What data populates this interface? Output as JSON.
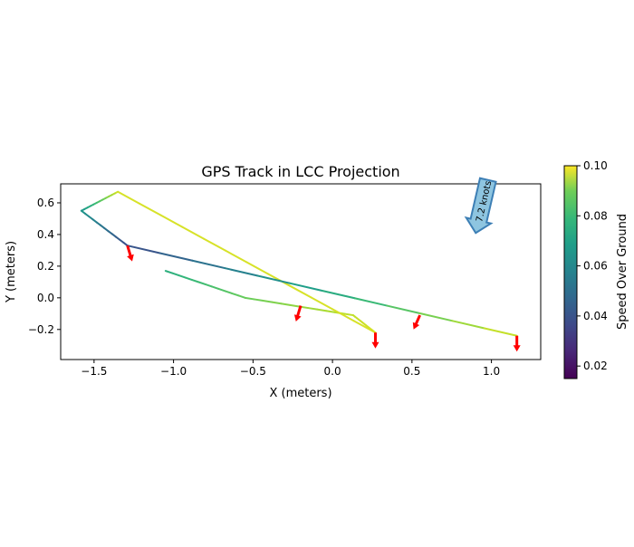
{
  "chart_data": {
    "type": "line",
    "title": "GPS Track in LCC Projection",
    "xlabel": "X (meters)",
    "ylabel": "Y (meters)",
    "xlim": [
      -1.71,
      1.31
    ],
    "ylim": [
      -0.39,
      0.72
    ],
    "xticks": [
      -1.5,
      -1.0,
      -0.5,
      0.0,
      0.5,
      1.0
    ],
    "xtick_labels": [
      "−1.5",
      "−1.0",
      "−0.5",
      "0.0",
      "0.5",
      "1.0"
    ],
    "yticks": [
      -0.2,
      0.0,
      0.2,
      0.4,
      0.6
    ],
    "ytick_labels": [
      "−0.2",
      "0.0",
      "0.2",
      "0.4",
      "0.6"
    ],
    "track": {
      "x": [
        -1.05,
        -0.55,
        0.13,
        0.27,
        -1.35,
        -1.58,
        -1.29,
        1.16
      ],
      "y": [
        0.17,
        0.0,
        -0.11,
        -0.22,
        0.67,
        0.55,
        0.33,
        -0.24
      ],
      "speed": [
        0.068,
        0.08,
        0.092,
        0.095,
        0.095,
        0.06,
        0.035,
        0.095
      ]
    },
    "heading_arrows": [
      {
        "x": -1.29,
        "y": 0.33,
        "dx": 0.03,
        "dy": -0.1
      },
      {
        "x": -0.2,
        "y": -0.05,
        "dx": -0.03,
        "dy": -0.1
      },
      {
        "x": 0.27,
        "y": -0.22,
        "dx": 0.0,
        "dy": -0.1
      },
      {
        "x": 0.55,
        "y": -0.11,
        "dx": -0.04,
        "dy": -0.09
      },
      {
        "x": 1.16,
        "y": -0.24,
        "dx": 0.0,
        "dy": -0.1
      }
    ],
    "wind_annotation": {
      "label": "7.2 knots",
      "color": "#8ec5e0",
      "edge": "#3d7fb5"
    },
    "arrow_color": "#ff0000",
    "colorbar": {
      "label": "Speed Over Ground",
      "range": [
        0.015,
        0.1
      ],
      "ticks": [
        0.02,
        0.04,
        0.06,
        0.08,
        0.1
      ],
      "tick_labels": [
        "0.02",
        "0.04",
        "0.06",
        "0.08",
        "0.10"
      ],
      "colormap": "viridis"
    }
  }
}
